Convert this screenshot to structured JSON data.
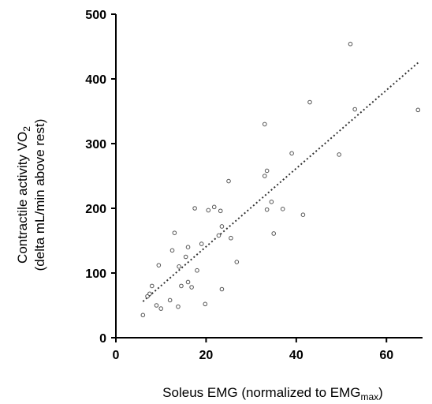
{
  "chart_data": {
    "type": "scatter",
    "title": "",
    "xlabel": {
      "main": "Soleus EMG (normalized to EMG",
      "sub": "max",
      "close": ")"
    },
    "ylabel": {
      "line1_main": "Contractile activity VO",
      "line1_sub": "2",
      "line2": "(delta mL/min above rest)"
    },
    "xlim": [
      0,
      68
    ],
    "ylim": [
      0,
      500
    ],
    "xticks": [
      0,
      20,
      40,
      60
    ],
    "yticks": [
      0,
      100,
      200,
      300,
      400,
      500
    ],
    "grid": false,
    "legend": "none",
    "marker_color": "#555555",
    "trendline": {
      "style": "dotted",
      "color": "#333333",
      "points": [
        [
          6.0,
          56
        ],
        [
          67.0,
          425
        ]
      ]
    },
    "points": [
      [
        6.0,
        35
      ],
      [
        7.0,
        64
      ],
      [
        7.5,
        68
      ],
      [
        8.0,
        80
      ],
      [
        9.0,
        50
      ],
      [
        9.5,
        112
      ],
      [
        10.0,
        45
      ],
      [
        12.0,
        58
      ],
      [
        12.5,
        135
      ],
      [
        13.0,
        162
      ],
      [
        13.8,
        48
      ],
      [
        14.0,
        110
      ],
      [
        14.5,
        80
      ],
      [
        15.5,
        125
      ],
      [
        16.0,
        140
      ],
      [
        16.0,
        86
      ],
      [
        16.8,
        78
      ],
      [
        17.5,
        200
      ],
      [
        18.0,
        104
      ],
      [
        19.0,
        145
      ],
      [
        19.8,
        52
      ],
      [
        20.5,
        197
      ],
      [
        21.8,
        202
      ],
      [
        22.8,
        158
      ],
      [
        23.2,
        196
      ],
      [
        23.5,
        172
      ],
      [
        23.5,
        75
      ],
      [
        25.0,
        242
      ],
      [
        25.5,
        154
      ],
      [
        26.8,
        117
      ],
      [
        33.0,
        250
      ],
      [
        33.0,
        330
      ],
      [
        33.5,
        258
      ],
      [
        33.5,
        198
      ],
      [
        34.5,
        210
      ],
      [
        35.0,
        161
      ],
      [
        37.0,
        199
      ],
      [
        39.0,
        285
      ],
      [
        41.5,
        190
      ],
      [
        43.0,
        364
      ],
      [
        49.5,
        283
      ],
      [
        52.0,
        454
      ],
      [
        53.0,
        353
      ],
      [
        67.0,
        352
      ]
    ]
  }
}
